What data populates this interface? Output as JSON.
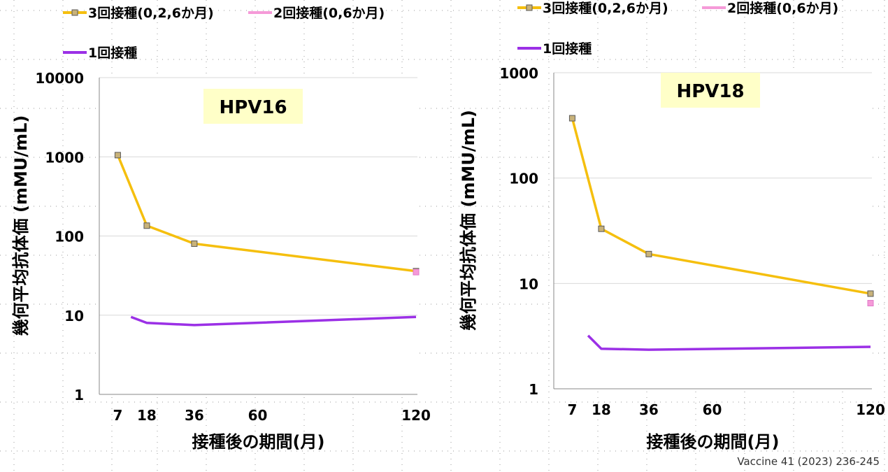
{
  "colors": {
    "three_dose": "#f5bf0e",
    "three_dose_marker": "#c8b27a",
    "two_dose": "#f59ad8",
    "one_dose": "#9b30e6",
    "grid": "#d9d9d9",
    "label_box": "#ffffc8",
    "background_dots": "#9a9a9a"
  },
  "legend": {
    "three_dose": "3回接種(0,2,6か月)",
    "two_dose": "2回接種(0,6か月)",
    "one_dose": "1回接種"
  },
  "citation": "Vaccine 41 (2023) 236-245",
  "chart_data": [
    {
      "type": "line",
      "title": "HPV16",
      "xlabel": "接種後の期間(月)",
      "ylabel": "幾何平均抗体価 (mMU/mL)",
      "y_scale": "log",
      "ylim": [
        1,
        10000
      ],
      "y_ticks": [
        "1",
        "10",
        "100",
        "1000",
        "10000"
      ],
      "x_ticks": [
        7,
        18,
        36,
        60,
        120
      ],
      "grid": "horizontal",
      "legend_position": "top-left",
      "series": [
        {
          "name": "3回接種(0,2,6か月)",
          "x": [
            7,
            18,
            36,
            120
          ],
          "y": [
            1050,
            135,
            80,
            36
          ],
          "markers": true
        },
        {
          "name": "2回接種(0,6か月)",
          "x": [
            120
          ],
          "y": [
            35
          ],
          "markers": true
        },
        {
          "name": "1回接種",
          "x": [
            12,
            18,
            36,
            120
          ],
          "y": [
            9.5,
            8.0,
            7.5,
            9.5
          ],
          "markers": false
        }
      ]
    },
    {
      "type": "line",
      "title": "HPV18",
      "xlabel": "接種後の期間(月)",
      "ylabel": "幾何平均抗体価 (mMU/mL)",
      "y_scale": "log",
      "ylim": [
        1,
        1000
      ],
      "y_ticks": [
        "1",
        "10",
        "100",
        "1000"
      ],
      "x_ticks": [
        7,
        18,
        36,
        60,
        120
      ],
      "grid": "horizontal",
      "legend_position": "top-left",
      "series": [
        {
          "name": "3回接種(0,2,6か月)",
          "x": [
            7,
            18,
            36,
            120
          ],
          "y": [
            370,
            33,
            19,
            8
          ],
          "markers": true
        },
        {
          "name": "2回接種(0,6か月)",
          "x": [
            120
          ],
          "y": [
            6.5
          ],
          "markers": true
        },
        {
          "name": "1回接種",
          "x": [
            13,
            18,
            36,
            120
          ],
          "y": [
            3.2,
            2.4,
            2.35,
            2.5
          ],
          "markers": false
        }
      ]
    }
  ]
}
